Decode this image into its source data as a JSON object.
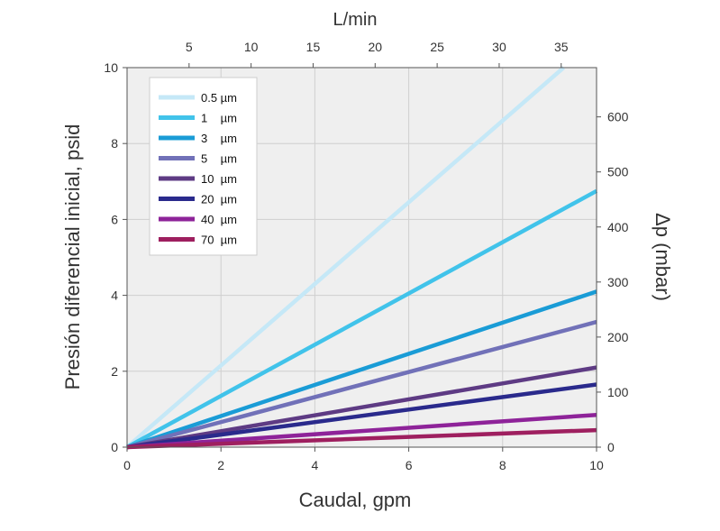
{
  "chart_data": {
    "type": "line",
    "xlabel": "Caudal, gpm",
    "ylabel": "Presión diferencial inicial, psid",
    "x2label": "L/min",
    "y2label": "Δp (mbar)",
    "xlim": [
      0,
      10
    ],
    "ylim": [
      0,
      10
    ],
    "x2lim": [
      0,
      37.85
    ],
    "y2lim": [
      0,
      689.5
    ],
    "x_ticks": [
      "0",
      "2",
      "4",
      "6",
      "8",
      "10"
    ],
    "y_ticks": [
      "0",
      "2",
      "4",
      "6",
      "8",
      "10"
    ],
    "x2_ticks": [
      "5",
      "10",
      "15",
      "20",
      "25",
      "30",
      "35"
    ],
    "y2_ticks": [
      "0",
      "100",
      "200",
      "300",
      "400",
      "500",
      "600"
    ],
    "grid": true,
    "legend_position": "top-left",
    "series": [
      {
        "name": "0.5 µm",
        "color": "#c5e8f7",
        "x": [
          0,
          9.3
        ],
        "y": [
          0,
          10
        ]
      },
      {
        "name": "1    µm",
        "color": "#41c3ea",
        "x": [
          0,
          10
        ],
        "y": [
          0,
          6.75
        ]
      },
      {
        "name": "3    µm",
        "color": "#1a9cd6",
        "x": [
          0,
          10
        ],
        "y": [
          0,
          4.1
        ]
      },
      {
        "name": "5    µm",
        "color": "#7171b8",
        "x": [
          0,
          10
        ],
        "y": [
          0,
          3.3
        ]
      },
      {
        "name": "10  µm",
        "color": "#5e3b84",
        "x": [
          0,
          10
        ],
        "y": [
          0,
          2.1
        ]
      },
      {
        "name": "20  µm",
        "color": "#2a2a8c",
        "x": [
          0,
          10
        ],
        "y": [
          0,
          1.65
        ]
      },
      {
        "name": "40  µm",
        "color": "#8e2399",
        "x": [
          0,
          10
        ],
        "y": [
          0,
          0.85
        ]
      },
      {
        "name": "70  µm",
        "color": "#9e1f5f",
        "x": [
          0,
          10
        ],
        "y": [
          0,
          0.45
        ]
      }
    ]
  }
}
